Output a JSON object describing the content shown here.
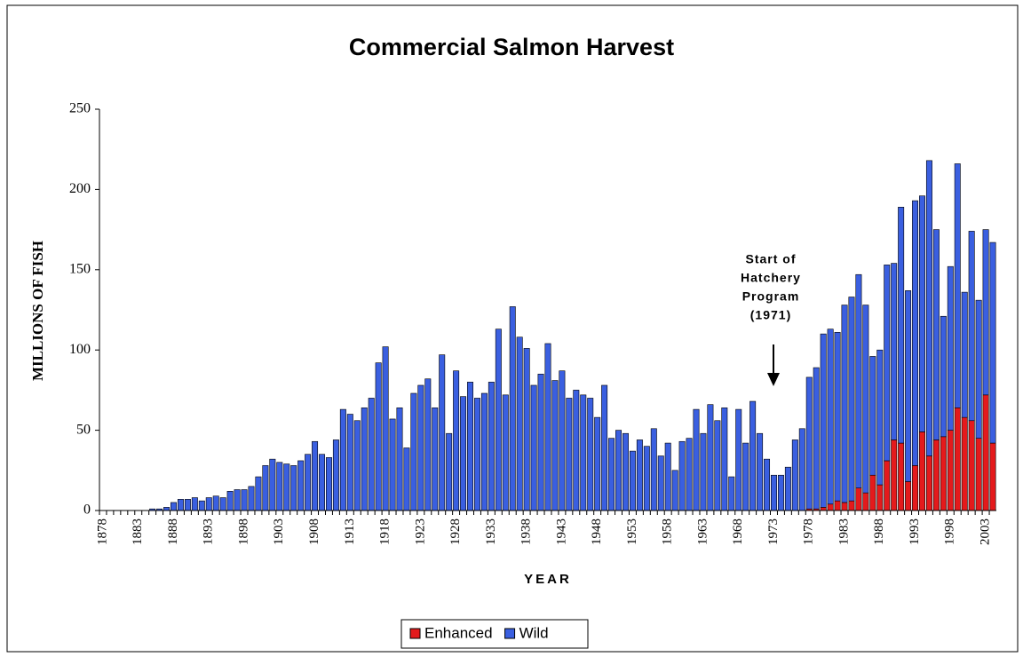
{
  "chart_data": {
    "type": "bar",
    "stacked": true,
    "title": "Commercial Salmon Harvest",
    "x_label": "YEAR",
    "y_label": "MILLIONS OF FISH",
    "annotation": [
      "Start of",
      "Hatchery",
      "Program",
      "(1971)"
    ],
    "categories": [
      "1878",
      null,
      null,
      null,
      null,
      "1883",
      null,
      null,
      null,
      null,
      "1888",
      null,
      null,
      null,
      null,
      "1893",
      null,
      null,
      null,
      null,
      "1898",
      null,
      null,
      null,
      null,
      "1903",
      null,
      null,
      null,
      null,
      "1908",
      null,
      null,
      null,
      null,
      "1913",
      null,
      null,
      null,
      null,
      "1918",
      null,
      null,
      null,
      null,
      "1923",
      null,
      null,
      null,
      null,
      "1928",
      null,
      null,
      null,
      null,
      "1933",
      null,
      null,
      null,
      null,
      "1938",
      null,
      null,
      null,
      null,
      "1943",
      null,
      null,
      null,
      null,
      "1948",
      null,
      null,
      null,
      null,
      "1953",
      null,
      null,
      null,
      null,
      "1958",
      null,
      null,
      null,
      null,
      "1963",
      null,
      null,
      null,
      null,
      "1968",
      null,
      null,
      null,
      null,
      "1973",
      null,
      null,
      null,
      null,
      "1978",
      null,
      null,
      null,
      null,
      "1983",
      null,
      null,
      null,
      null,
      "1988",
      null,
      null,
      null,
      null,
      "1993",
      null,
      null,
      null,
      null,
      "1998",
      null,
      null,
      null,
      null,
      "2003",
      null
    ],
    "series": [
      {
        "name": "Enhanced",
        "color": "#e41a1c",
        "values": [
          0,
          0,
          0,
          0,
          0,
          0,
          0,
          0,
          0,
          0,
          0,
          0,
          0,
          0,
          0,
          0,
          0,
          0,
          0,
          0,
          0,
          0,
          0,
          0,
          0,
          0,
          0,
          0,
          0,
          0,
          0,
          0,
          0,
          0,
          0,
          0,
          0,
          0,
          0,
          0,
          0,
          0,
          0,
          0,
          0,
          0,
          0,
          0,
          0,
          0,
          0,
          0,
          0,
          0,
          0,
          0,
          0,
          0,
          0,
          0,
          0,
          0,
          0,
          0,
          0,
          0,
          0,
          0,
          0,
          0,
          0,
          0,
          0,
          0,
          0,
          0,
          0,
          0,
          0,
          0,
          0,
          0,
          0,
          0,
          0,
          0,
          0,
          0,
          0,
          0,
          0,
          0,
          0,
          0,
          0,
          0,
          0,
          0,
          0,
          0,
          1,
          1,
          2,
          4,
          6,
          5,
          6,
          14,
          11,
          22,
          16,
          31,
          44,
          42,
          18,
          28,
          49,
          34,
          44,
          46,
          50,
          64,
          58,
          56,
          45,
          72,
          42
        ]
      },
      {
        "name": "Wild",
        "color": "#3a5fe0",
        "values": [
          0,
          0,
          0,
          0,
          0,
          0,
          0,
          1,
          1,
          2,
          5,
          7,
          7,
          8,
          6,
          8,
          9,
          8,
          12,
          13,
          13,
          15,
          21,
          28,
          32,
          30,
          29,
          28,
          31,
          35,
          43,
          35,
          33,
          44,
          63,
          60,
          56,
          64,
          70,
          92,
          102,
          57,
          64,
          39,
          73,
          78,
          82,
          64,
          97,
          48,
          87,
          71,
          80,
          70,
          73,
          80,
          113,
          72,
          127,
          108,
          101,
          78,
          85,
          104,
          81,
          87,
          70,
          75,
          72,
          70,
          58,
          78,
          45,
          50,
          48,
          37,
          44,
          40,
          51,
          34,
          42,
          25,
          43,
          45,
          63,
          48,
          66,
          56,
          64,
          21,
          63,
          42,
          68,
          48,
          32,
          22,
          22,
          27,
          44,
          51,
          82,
          88,
          108,
          109,
          105,
          123,
          127,
          133,
          117,
          74,
          84,
          122,
          110,
          147,
          119,
          165,
          147,
          184,
          131,
          75,
          102,
          152,
          78,
          118,
          86,
          103,
          125
        ]
      }
    ],
    "ylim": [
      0,
      250
    ],
    "yticks": [
      0,
      50,
      100,
      150,
      200,
      250
    ],
    "grid": false,
    "legend": "bottom"
  }
}
